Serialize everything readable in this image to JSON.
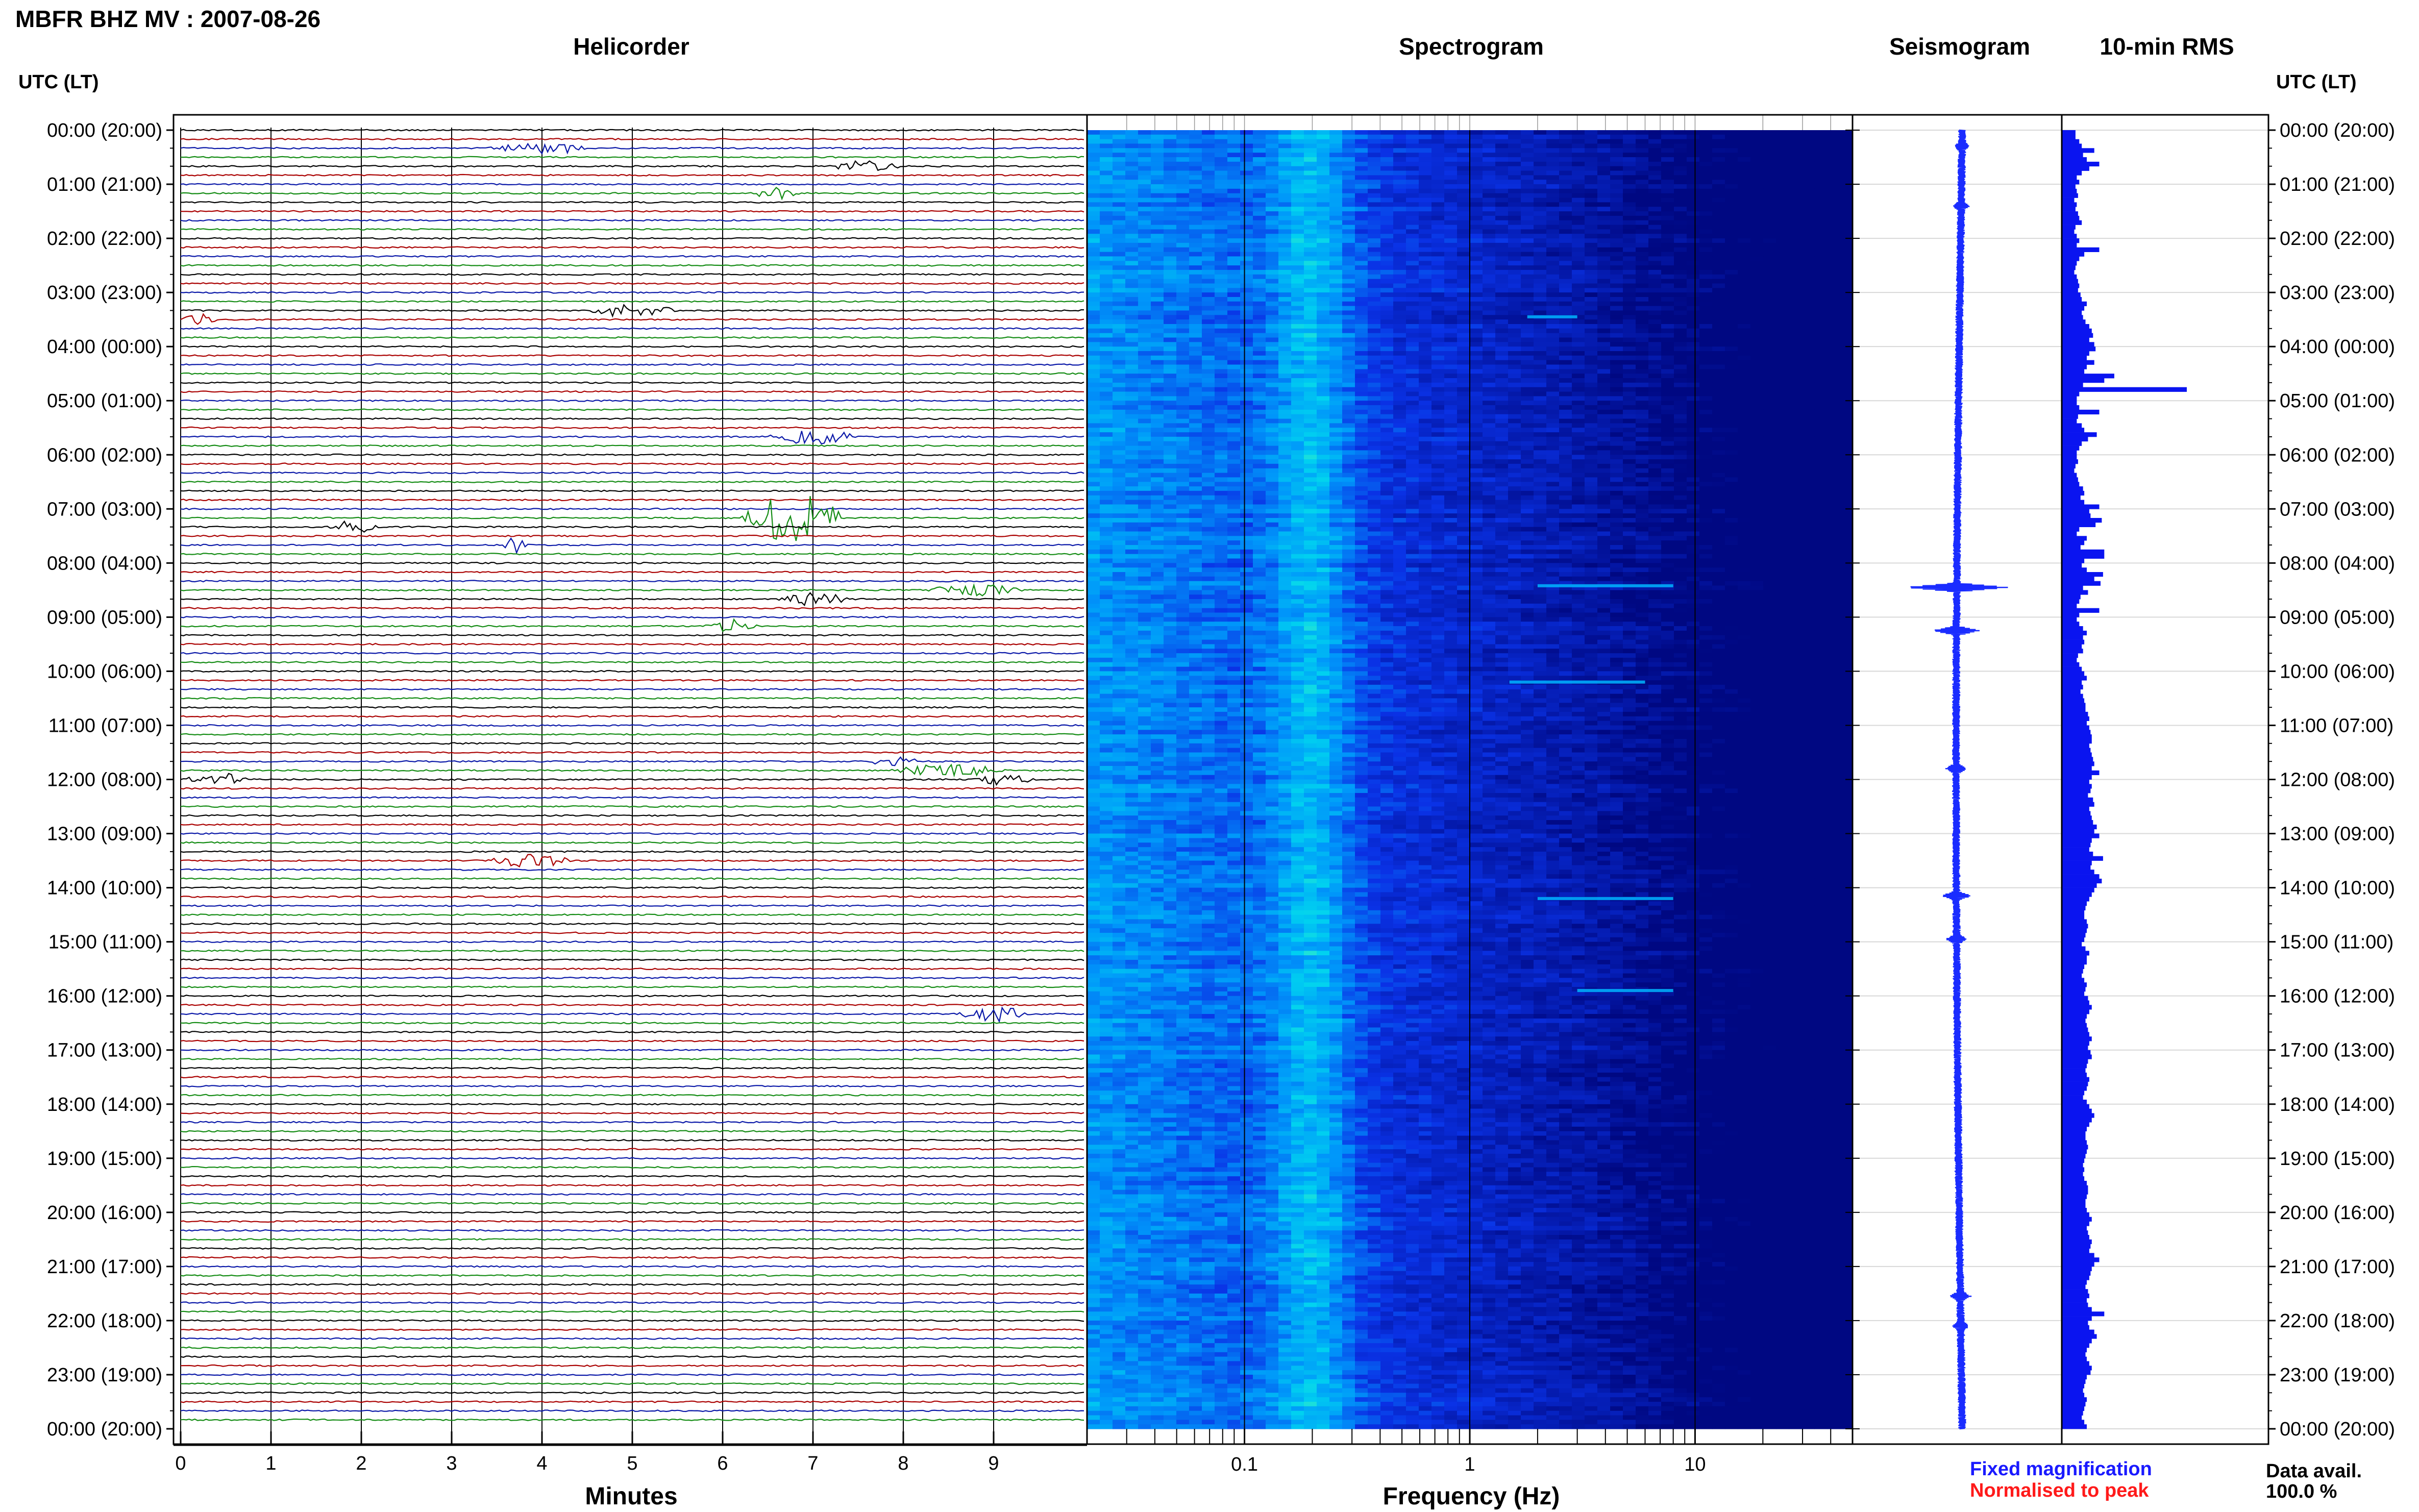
{
  "header": {
    "title": "MBFR BHZ MV : 2007-08-26"
  },
  "panels": {
    "helicorder": "Helicorder",
    "spectrogram": "Spectrogram",
    "seismogram": "Seismogram",
    "rms": "10-min RMS"
  },
  "axis_labels": {
    "left_head": "UTC (LT)",
    "right_head": "UTC (LT)",
    "helicorder_x": "Minutes",
    "spectrogram_x": "Frequency (Hz)"
  },
  "legend": {
    "fixed": "Fixed magnification",
    "normalised": "Normalised to peak",
    "data_avail_label": "Data avail.",
    "data_avail_value": "100.0 %"
  },
  "colors": {
    "trace_black": "#000000",
    "trace_red": "#aa0000",
    "trace_blue": "#0a18a8",
    "trace_green": "#148c14",
    "spectro_low": "#0010a0",
    "spectro_mid": "#00b4ff",
    "spectro_high": "#40ffb0",
    "seismo_blue": "#1a2cff",
    "rms_blue": "#0a14f0",
    "fixed_text": "#1a1aff",
    "normalised_text": "#ff1a1a"
  },
  "chart_data": [
    {
      "type": "line",
      "name": "helicorder",
      "title": "Helicorder",
      "xlabel": "Minutes",
      "xlim": [
        0,
        10
      ],
      "x_ticks": [
        0,
        1,
        2,
        3,
        4,
        5,
        6,
        7,
        8,
        9
      ],
      "rows_per_hour": 6,
      "row_minutes": 10,
      "row_colors_cycle": [
        "black",
        "red",
        "blue",
        "green"
      ],
      "events": [
        {
          "row": 2,
          "minute": 4.0,
          "amp": 0.6,
          "width": 1.2
        },
        {
          "row": 4,
          "minute": 7.6,
          "amp": 0.6,
          "width": 0.8
        },
        {
          "row": 7,
          "minute": 6.6,
          "amp": 0.7,
          "width": 0.5
        },
        {
          "row": 20,
          "minute": 5.0,
          "amp": 0.7,
          "width": 1.0
        },
        {
          "row": 21,
          "minute": 0.2,
          "amp": 0.6,
          "width": 0.4
        },
        {
          "row": 34,
          "minute": 7.0,
          "amp": 0.8,
          "width": 1.0
        },
        {
          "row": 43,
          "minute": 6.8,
          "amp": 2.6,
          "width": 1.2
        },
        {
          "row": 44,
          "minute": 1.9,
          "amp": 0.7,
          "width": 0.6
        },
        {
          "row": 46,
          "minute": 3.7,
          "amp": 0.9,
          "width": 0.3
        },
        {
          "row": 51,
          "minute": 8.8,
          "amp": 0.6,
          "width": 1.1
        },
        {
          "row": 52,
          "minute": 7.0,
          "amp": 0.7,
          "width": 0.8
        },
        {
          "row": 55,
          "minute": 6.1,
          "amp": 0.7,
          "width": 0.6
        },
        {
          "row": 70,
          "minute": 7.9,
          "amp": 0.5,
          "width": 0.6
        },
        {
          "row": 71,
          "minute": 8.5,
          "amp": 0.6,
          "width": 1.3
        },
        {
          "row": 72,
          "minute": 0.4,
          "amp": 0.7,
          "width": 0.7
        },
        {
          "row": 72,
          "minute": 9.1,
          "amp": 0.6,
          "width": 0.7
        },
        {
          "row": 81,
          "minute": 3.9,
          "amp": 0.7,
          "width": 1.0
        },
        {
          "row": 98,
          "minute": 9.0,
          "amp": 0.8,
          "width": 0.8
        }
      ]
    },
    {
      "type": "heatmap",
      "name": "spectrogram",
      "title": "Spectrogram",
      "xlabel": "Frequency (Hz)",
      "x_scale": "log",
      "xlim": [
        0.02,
        50
      ],
      "x_ticks": [
        0.1,
        1,
        10
      ],
      "x_tick_labels": [
        "0.1",
        "1",
        "10"
      ],
      "microseism_peak_hz": 0.2,
      "bright_lines": [
        {
          "hour": 8.42,
          "fmin": 2.0,
          "fmax": 8.0
        },
        {
          "hour": 10.2,
          "fmin": 1.5,
          "fmax": 6.0
        },
        {
          "hour": 14.2,
          "fmin": 2.0,
          "fmax": 8.0
        },
        {
          "hour": 15.9,
          "fmin": 3.0,
          "fmax": 8.0
        },
        {
          "hour": 3.45,
          "fmin": 1.8,
          "fmax": 3.0
        }
      ]
    },
    {
      "type": "line",
      "name": "seismogram",
      "title": "Seismogram",
      "spikes": [
        {
          "hour": 0.3,
          "amp": 8
        },
        {
          "hour": 1.4,
          "amp": 10
        },
        {
          "hour": 8.45,
          "amp": 95
        },
        {
          "hour": 9.25,
          "amp": 40
        },
        {
          "hour": 11.8,
          "amp": 14
        },
        {
          "hour": 14.15,
          "amp": 22
        },
        {
          "hour": 14.95,
          "amp": 14
        },
        {
          "hour": 21.55,
          "amp": 14
        },
        {
          "hour": 22.1,
          "amp": 10
        }
      ]
    },
    {
      "type": "bar",
      "name": "rms",
      "title": "10-min RMS",
      "bin_minutes": 10,
      "values": [
        0.11,
        0.11,
        0.14,
        0.16,
        0.26,
        0.17,
        0.2,
        0.3,
        0.22,
        0.16,
        0.12,
        0.14,
        0.11,
        0.12,
        0.13,
        0.1,
        0.12,
        0.11,
        0.13,
        0.14,
        0.16,
        0.11,
        0.1,
        0.12,
        0.14,
        0.12,
        0.3,
        0.18,
        0.14,
        0.12,
        0.11,
        0.1,
        0.12,
        0.13,
        0.14,
        0.13,
        0.15,
        0.16,
        0.2,
        0.18,
        0.16,
        0.17,
        0.19,
        0.22,
        0.24,
        0.25,
        0.22,
        0.26,
        0.27,
        0.22,
        0.2,
        0.26,
        0.2,
        0.18,
        0.42,
        0.34,
        0.17,
        1.0,
        0.14,
        0.12,
        0.12,
        0.14,
        0.3,
        0.13,
        0.12,
        0.16,
        0.18,
        0.28,
        0.21,
        0.16,
        0.14,
        0.12,
        0.12,
        0.13,
        0.11,
        0.1,
        0.12,
        0.13,
        0.14,
        0.17,
        0.18,
        0.15,
        0.18,
        0.3,
        0.22,
        0.23,
        0.32,
        0.27,
        0.14,
        0.12,
        0.2,
        0.18,
        0.15,
        0.34,
        0.34,
        0.18,
        0.16,
        0.2,
        0.33,
        0.26,
        0.31,
        0.17,
        0.21,
        0.15,
        0.14,
        0.12,
        0.3,
        0.14,
        0.12,
        0.14,
        0.17,
        0.2,
        0.17,
        0.18,
        0.16,
        0.17,
        0.13,
        0.12,
        0.14,
        0.16,
        0.18,
        0.2,
        0.16,
        0.17,
        0.15,
        0.17,
        0.18,
        0.19,
        0.19,
        0.21,
        0.22,
        0.2,
        0.22,
        0.23,
        0.24,
        0.24,
        0.22,
        0.23,
        0.24,
        0.25,
        0.26,
        0.24,
        0.3,
        0.24,
        0.22,
        0.24,
        0.23,
        0.21,
        0.25,
        0.26,
        0.22,
        0.23,
        0.24,
        0.25,
        0.28,
        0.26,
        0.3,
        0.24,
        0.23,
        0.22,
        0.25,
        0.33,
        0.24,
        0.23,
        0.26,
        0.3,
        0.32,
        0.28,
        0.26,
        0.24,
        0.22,
        0.2,
        0.19,
        0.18,
        0.18,
        0.2,
        0.21,
        0.2,
        0.19,
        0.18,
        0.16,
        0.19,
        0.22,
        0.2,
        0.2,
        0.18,
        0.17,
        0.16,
        0.18,
        0.2,
        0.19,
        0.18,
        0.21,
        0.22,
        0.24,
        0.22,
        0.2,
        0.19,
        0.2,
        0.21,
        0.22,
        0.24,
        0.22,
        0.21,
        0.23,
        0.24,
        0.21,
        0.2,
        0.19,
        0.2,
        0.22,
        0.21,
        0.2,
        0.18,
        0.17,
        0.2,
        0.22,
        0.24,
        0.26,
        0.24,
        0.22,
        0.2,
        0.19,
        0.19,
        0.2,
        0.21,
        0.2,
        0.19,
        0.18,
        0.17,
        0.18,
        0.17,
        0.18,
        0.2,
        0.21,
        0.21,
        0.2,
        0.19,
        0.19,
        0.2,
        0.22,
        0.24,
        0.22,
        0.2,
        0.21,
        0.22,
        0.24,
        0.23,
        0.22,
        0.26,
        0.3,
        0.26,
        0.24,
        0.23,
        0.22,
        0.2,
        0.19,
        0.21,
        0.22,
        0.2,
        0.21,
        0.24,
        0.34,
        0.24,
        0.21,
        0.22,
        0.26,
        0.28,
        0.24,
        0.22,
        0.2,
        0.19,
        0.2,
        0.22,
        0.24,
        0.23,
        0.2,
        0.19,
        0.18,
        0.17,
        0.18,
        0.2,
        0.19,
        0.18,
        0.17,
        0.16,
        0.18,
        0.2
      ]
    }
  ],
  "time_axis": {
    "major_hours": [
      0,
      1,
      2,
      3,
      4,
      5,
      6,
      7,
      8,
      9,
      10,
      11,
      12,
      13,
      14,
      15,
      16,
      17,
      18,
      19,
      20,
      21,
      22,
      23,
      24
    ],
    "labels": [
      "00:00 (20:00)",
      "01:00 (21:00)",
      "02:00 (22:00)",
      "03:00 (23:00)",
      "04:00 (00:00)",
      "05:00 (01:00)",
      "06:00 (02:00)",
      "07:00 (03:00)",
      "08:00 (04:00)",
      "09:00 (05:00)",
      "10:00 (06:00)",
      "11:00 (07:00)",
      "12:00 (08:00)",
      "13:00 (09:00)",
      "14:00 (10:00)",
      "15:00 (11:00)",
      "16:00 (12:00)",
      "17:00 (13:00)",
      "18:00 (14:00)",
      "19:00 (15:00)",
      "20:00 (16:00)",
      "21:00 (17:00)",
      "22:00 (18:00)",
      "23:00 (19:00)",
      "00:00 (20:00)"
    ]
  }
}
